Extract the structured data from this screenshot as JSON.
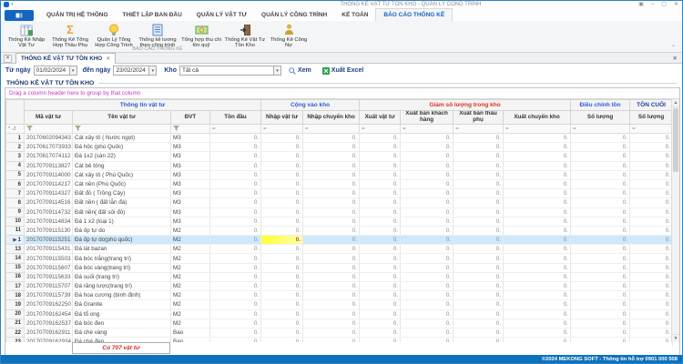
{
  "window": {
    "title": "THỐNG KÊ VẬT TƯ TỒN KHO - QUẢN LÝ CÔNG TRÌNH",
    "controls": {
      "style": "▣",
      "minimize": "–",
      "maximize": "▢",
      "close": "✕"
    }
  },
  "ribbon": {
    "tabs": [
      "QUẢN TRỊ HỆ THỐNG",
      "THIẾT LẬP BAN ĐẦU",
      "QUẢN LÝ VẬT TƯ",
      "QUẢN LÝ CÔNG TRÌNH",
      "KẾ TOÁN",
      "BÁO CÁO THỐNG KÊ"
    ],
    "active_tab": "BÁO CÁO THỐNG KÊ",
    "buttons": [
      {
        "label": "Thống Kê Nhập Vật Tư",
        "icon": "stats-table-icon"
      },
      {
        "label": "Thống Kê Tổng Hợp Thầu Phụ",
        "icon": "sigma-icon"
      },
      {
        "label": "Quản Lý Tổng Hợp Công Trình",
        "icon": "bulb-icon"
      },
      {
        "label": "Thống kê lương theo công trình",
        "icon": "report-book-icon"
      },
      {
        "label": "Tổng hợp thu chi tồn quỹ",
        "icon": "cash-icon"
      },
      {
        "label": "Thống Kê Vật Tư Tồn Kho",
        "icon": "door-exit-icon"
      },
      {
        "label": "Thống Kê Công Nợ",
        "icon": "person-icon"
      }
    ],
    "group_label": "BÁO CÁO THỐNG KÊ",
    "collapse_glyph": "⌃"
  },
  "doc_tab": {
    "label": "THỐNG KÊ VẬT TƯ TỒN KHO",
    "close_glyph": "✕"
  },
  "filter_bar": {
    "from_label": "Từ ngày",
    "from_value": "01/02/2024",
    "to_label": "đến ngày",
    "to_value": "23/02/2024",
    "kho_label": "Kho",
    "kho_value": "Tất cả",
    "view_button": "Xem",
    "export_button": "Xuất Excel"
  },
  "section_title": "THỐNG KÊ VẬT TƯ TỒN KHO",
  "grid": {
    "drag_hint": "Drag a column header here to group by that column",
    "bands": [
      {
        "label": "Thông tin vật tư",
        "span": 4,
        "color": "blue"
      },
      {
        "label": "Cộng vào kho",
        "span": 2,
        "color": "blue"
      },
      {
        "label": "Giảm số lượng trong kho",
        "span": 4,
        "color": "red"
      },
      {
        "label": "Điều chỉnh tồn",
        "span": 1,
        "color": "blue"
      },
      {
        "label": "TỒN CUỐI",
        "span": 1,
        "color": "navy"
      }
    ],
    "columns": [
      "Mã vật tư",
      "Tên vật tư",
      "ĐVT",
      "Tồn đầu",
      "Nhập vật tư",
      "Nhập chuyển kho",
      "Xuất vật tư",
      "Xuất bán khách hàng",
      "Xuất bán thầu phụ",
      "Xuất chuyển kho",
      "Số lượng",
      "Số lượng"
    ],
    "filter_indicator": "* -2",
    "zero": "0.",
    "numeric_count": 9,
    "selected_row_num": 12,
    "focused_column": "Nhập vật tư",
    "rows": [
      {
        "num": 1,
        "code": "20170602094343",
        "name": "Cát xây tô ( Nước ngọt)",
        "uom": "M3"
      },
      {
        "num": 2,
        "code": "20170617073933",
        "name": "Đá hộc (phú Quốc)",
        "uom": "M3"
      },
      {
        "num": 3,
        "code": "20170617074112",
        "name": "Đá 1x2 (sàn 22)",
        "uom": "M3"
      },
      {
        "num": 4,
        "code": "20170709113827",
        "name": "Cát bê tông",
        "uom": "M3"
      },
      {
        "num": 5,
        "code": "20170709114000",
        "name": "Cát xây tô ( Phú Quốc)",
        "uom": "M3"
      },
      {
        "num": 6,
        "code": "20170709114217",
        "name": "Cát nền (Phú Quốc)",
        "uom": "M3"
      },
      {
        "num": 7,
        "code": "20170709114327",
        "name": "Đất đỏ ( Trồng Cây)",
        "uom": "M3"
      },
      {
        "num": 8,
        "code": "20170709114516",
        "name": "Đất nền ( đất lẫn đá)",
        "uom": "M3"
      },
      {
        "num": 9,
        "code": "20170709114732",
        "name": "Đất nền( đất sỏi đỏ)",
        "uom": "M3"
      },
      {
        "num": 10,
        "code": "20170709114834",
        "name": "Đá 1 x2 (loại 1)",
        "uom": "M3"
      },
      {
        "num": 11,
        "code": "20170709115130",
        "name": "Đá ốp tự do",
        "uom": "M2"
      },
      {
        "num": 12,
        "code": "20170709115251",
        "name": "Đá ốp tự do(phú quốc)",
        "uom": "M2"
      },
      {
        "num": 13,
        "code": "20170709115431",
        "name": "Đá lát bazan",
        "uom": "M2"
      },
      {
        "num": 14,
        "code": "20170709115503",
        "name": "Đá bóc trắng(trang trí)",
        "uom": "M2"
      },
      {
        "num": 15,
        "code": "20170709115607",
        "name": "Đá bóc vàng(trang trí)",
        "uom": "M2"
      },
      {
        "num": 16,
        "code": "20170709115633",
        "name": "Đá suối (trang trí)",
        "uom": "M2"
      },
      {
        "num": 17,
        "code": "20170709115707",
        "name": "Đá răng lược(trang trí)",
        "uom": "M2"
      },
      {
        "num": 18,
        "code": "20170709115739",
        "name": "Đá hoa cương (bình định)",
        "uom": "M2"
      },
      {
        "num": 19,
        "code": "20170709162250",
        "name": "Đá Granite",
        "uom": "M2"
      },
      {
        "num": 20,
        "code": "20170709162454",
        "name": "Đá tổ ong",
        "uom": "M2"
      },
      {
        "num": 21,
        "code": "20170709162537",
        "name": "Đá bóc đen",
        "uom": "M2"
      },
      {
        "num": 22,
        "code": "20170709162911",
        "name": "Đá chè vàng",
        "uom": "Bao"
      },
      {
        "num": 23,
        "code": "20170709162934",
        "name": "Đá chè đen",
        "uom": "Bao"
      }
    ],
    "footer_count": "Có 707 vật tư"
  },
  "status_bar": {
    "text": "©2024 MEKONG SOFT - Thông tin hỗ trợ 0901 000 508"
  },
  "colors": {
    "accent_blue": "#1565c0",
    "band_blue": "#2a5bd7",
    "band_red": "#e0301e",
    "hint_magenta": "#cc33cc",
    "selection_blue": "#cfe8fb",
    "focused_cell_yellow": "#ffff2e",
    "footer_red": "#d42a2a",
    "statusbar_blue": "#0e72bb"
  }
}
